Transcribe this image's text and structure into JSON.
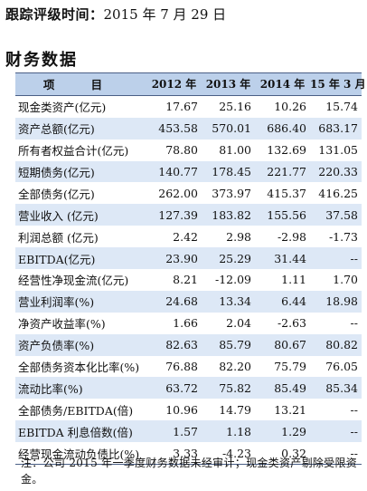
{
  "tracking": {
    "label": "跟踪评级时间：",
    "date": "2015 年 7 月 29 日"
  },
  "section_title": "财务数据",
  "table": {
    "headers": [
      "项 目",
      "2012 年",
      "2013 年",
      "2014 年",
      "15 年 3 月"
    ],
    "rows": [
      {
        "label": "现金类资产(亿元)",
        "values": [
          "17.67",
          "25.16",
          "10.26",
          "15.74"
        ]
      },
      {
        "label": "资产总额(亿元)",
        "values": [
          "453.58",
          "570.01",
          "686.40",
          "683.17"
        ]
      },
      {
        "label": "所有者权益合计(亿元)",
        "values": [
          "78.80",
          "81.00",
          "132.69",
          "131.05"
        ]
      },
      {
        "label": "短期债务(亿元)",
        "values": [
          "140.77",
          "178.45",
          "221.77",
          "220.33"
        ]
      },
      {
        "label": "全部债务(亿元)",
        "values": [
          "262.00",
          "373.97",
          "415.37",
          "416.25"
        ]
      },
      {
        "label": "营业收入 (亿元)",
        "values": [
          "127.39",
          "183.82",
          "155.56",
          "37.58"
        ]
      },
      {
        "label": "利润总额 (亿元)",
        "values": [
          "2.42",
          "2.98",
          "-2.98",
          "-1.73"
        ]
      },
      {
        "label": "EBITDA(亿元)",
        "values": [
          "23.90",
          "25.29",
          "31.44",
          "--"
        ]
      },
      {
        "label": "经营性净现金流(亿元)",
        "values": [
          "8.21",
          "-12.09",
          "1.11",
          "1.70"
        ]
      },
      {
        "label": "营业利润率(%)",
        "values": [
          "24.68",
          "13.34",
          "6.44",
          "18.98"
        ]
      },
      {
        "label": "净资产收益率(%)",
        "values": [
          "1.66",
          "2.04",
          "-2.63",
          "--"
        ]
      },
      {
        "label": "资产负债率(%)",
        "values": [
          "82.63",
          "85.79",
          "80.67",
          "80.82"
        ]
      },
      {
        "label": "全部债务资本化比率(%)",
        "values": [
          "76.88",
          "82.20",
          "75.79",
          "76.05"
        ]
      },
      {
        "label": "流动比率(%)",
        "values": [
          "63.72",
          "75.82",
          "85.49",
          "85.34"
        ]
      },
      {
        "label": "全部债务/EBITDA(倍)",
        "values": [
          "10.96",
          "14.79",
          "13.21",
          "--"
        ]
      },
      {
        "label": "EBITDA 利息倍数(倍)",
        "values": [
          "1.57",
          "1.18",
          "1.29",
          "--"
        ]
      },
      {
        "label": "经营现金流动负债比(%)",
        "values": [
          "3.33",
          "-4.23",
          "0.32",
          "--"
        ]
      }
    ]
  },
  "note": "注：公司 2015 年一季度财务数据未经审计；现金类资产剔除受限资金。",
  "colors": {
    "header_bg": "#bcd0ea",
    "stripe_bg": "#dde8f6",
    "rule": "#4a5f86"
  }
}
